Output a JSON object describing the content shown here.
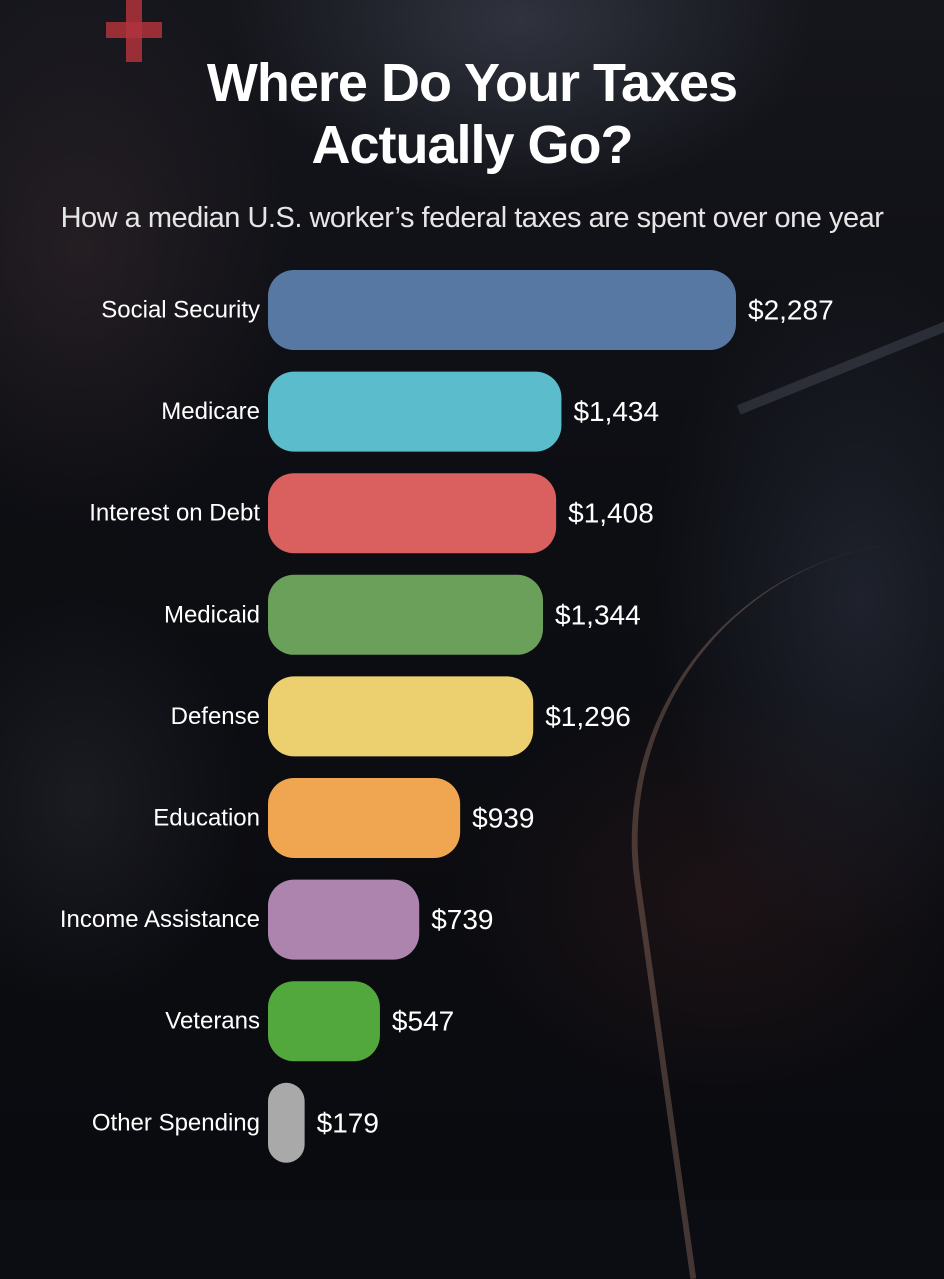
{
  "header": {
    "title_line1": "Where Do Your Taxes",
    "title_line2": "Actually Go?",
    "subtitle": "How a median U.S. worker’s federal taxes are spent over one year"
  },
  "chart_data": {
    "type": "bar",
    "orientation": "horizontal",
    "title": "Where Do Your Taxes Actually Go?",
    "subtitle": "How a median U.S. worker’s federal taxes are spent over one year",
    "categories": [
      "Social Security",
      "Medicare",
      "Interest on Debt",
      "Medicaid",
      "Defense",
      "Education",
      "Income Assistance",
      "Veterans",
      "Other Spending"
    ],
    "values": [
      2287,
      1434,
      1408,
      1344,
      1296,
      939,
      739,
      547,
      179
    ],
    "value_labels": [
      "$2,287",
      "$1,434",
      "$1,408",
      "$1,344",
      "$1,296",
      "$939",
      "$739",
      "$547",
      "$179"
    ],
    "colors": [
      "#5878a4",
      "#5bbccc",
      "#d9605f",
      "#6aa05a",
      "#ecd070",
      "#f0a551",
      "#ad84ae",
      "#52a83d",
      "#a9a9a9"
    ],
    "xlim": [
      0,
      2287
    ],
    "grid": false,
    "legend": "none"
  }
}
